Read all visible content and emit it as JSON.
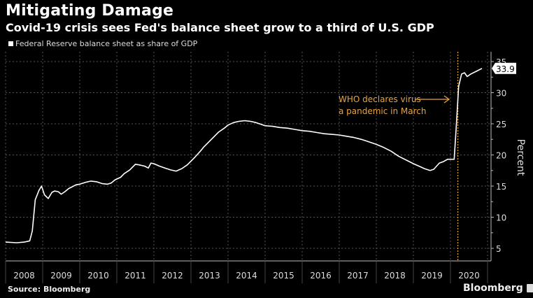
{
  "header": {
    "title": "Mitigating Damage",
    "subtitle": "Covid-19 crisis sees Fed's balance sheet grow to a third of U.S. GDP"
  },
  "legend": {
    "items": [
      {
        "label": "Federal Reserve balance sheet as share of GDP",
        "color": "#ffffff"
      }
    ]
  },
  "footer": {
    "source": "Source: Bloomberg",
    "brand": "Bloomberg"
  },
  "colors": {
    "background": "#000000",
    "line": "#ffffff",
    "annotation": "#e8a33d",
    "grid": "#555555"
  },
  "chart_data": {
    "type": "line",
    "title": "Mitigating Damage",
    "subtitle": "Covid-19 crisis sees Fed's balance sheet grow to a third of U.S. GDP",
    "xlabel": "",
    "ylabel": "Percent",
    "ylim": [
      3,
      36
    ],
    "xlim": [
      2008.0,
      2021.0
    ],
    "yticks": [
      5,
      10,
      15,
      20,
      25,
      30,
      35
    ],
    "xticks": [
      "2008",
      "2009",
      "2010",
      "2011",
      "2012",
      "2013",
      "2014",
      "2015",
      "2016",
      "2017",
      "2018",
      "2019",
      "2020"
    ],
    "grid": true,
    "legend_position": "top-left",
    "last_value_label": "33.9",
    "annotation": {
      "text_lines": [
        "WHO declares virus",
        "a pandemic in March"
      ],
      "x": 2020.2,
      "arrow": "right"
    },
    "series": [
      {
        "name": "Federal Reserve balance sheet as share of GDP",
        "x": [
          2008.0,
          2008.3,
          2008.5,
          2008.65,
          2008.72,
          2008.8,
          2008.9,
          2008.97,
          2009.05,
          2009.15,
          2009.25,
          2009.32,
          2009.42,
          2009.5,
          2009.6,
          2009.7,
          2009.8,
          2009.9,
          2010.0,
          2010.15,
          2010.3,
          2010.45,
          2010.6,
          2010.75,
          2010.85,
          2010.95,
          2011.1,
          2011.2,
          2011.35,
          2011.5,
          2011.6,
          2011.75,
          2011.85,
          2011.92,
          2012.0,
          2012.15,
          2012.3,
          2012.45,
          2012.6,
          2012.75,
          2012.9,
          2013.0,
          2013.1,
          2013.25,
          2013.35,
          2013.45,
          2013.6,
          2013.75,
          2013.9,
          2014.0,
          2014.15,
          2014.3,
          2014.45,
          2014.6,
          2014.75,
          2014.9,
          2015.0,
          2015.2,
          2015.4,
          2015.6,
          2015.8,
          2016.0,
          2016.2,
          2016.4,
          2016.6,
          2016.8,
          2017.0,
          2017.2,
          2017.4,
          2017.6,
          2017.8,
          2018.0,
          2018.2,
          2018.4,
          2018.6,
          2018.8,
          2019.0,
          2019.15,
          2019.3,
          2019.45,
          2019.55,
          2019.7,
          2019.8,
          2019.92,
          2020.0,
          2020.1,
          2020.15,
          2020.22,
          2020.3,
          2020.38,
          2020.45,
          2020.55,
          2020.65,
          2020.75,
          2020.85
        ],
        "values": [
          6.0,
          5.9,
          6.0,
          6.2,
          7.8,
          12.8,
          14.3,
          15.0,
          13.6,
          13.0,
          14.0,
          14.2,
          14.1,
          13.7,
          14.1,
          14.6,
          14.9,
          15.2,
          15.3,
          15.6,
          15.8,
          15.7,
          15.4,
          15.3,
          15.5,
          16.0,
          16.4,
          17.0,
          17.6,
          18.5,
          18.4,
          18.2,
          17.9,
          18.7,
          18.6,
          18.2,
          17.9,
          17.6,
          17.4,
          17.8,
          18.4,
          19.0,
          19.6,
          20.6,
          21.3,
          21.9,
          22.8,
          23.7,
          24.3,
          24.8,
          25.2,
          25.4,
          25.5,
          25.4,
          25.2,
          24.9,
          24.7,
          24.6,
          24.4,
          24.3,
          24.1,
          23.9,
          23.8,
          23.6,
          23.4,
          23.3,
          23.2,
          23.0,
          22.8,
          22.5,
          22.1,
          21.7,
          21.2,
          20.6,
          19.8,
          19.2,
          18.6,
          18.2,
          17.8,
          17.5,
          17.7,
          18.7,
          18.9,
          19.3,
          19.3,
          19.3,
          24.0,
          31.0,
          33.0,
          33.2,
          32.6,
          33.0,
          33.3,
          33.6,
          33.9
        ]
      }
    ]
  }
}
